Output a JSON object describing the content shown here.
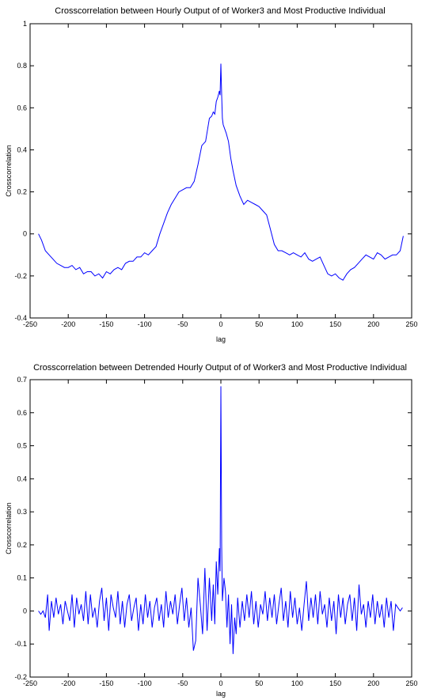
{
  "chart_data": [
    {
      "type": "line",
      "title": "Crosscorrelation between Hourly Output of of Worker3 and Most Productive Individual",
      "xlabel": "lag",
      "ylabel": "Crosscorrelation",
      "xlim": [
        -250,
        250
      ],
      "ylim": [
        -0.4,
        1
      ],
      "xticks": [
        -250,
        -200,
        -150,
        -100,
        -50,
        0,
        50,
        100,
        150,
        200,
        250
      ],
      "yticks": [
        -0.4,
        -0.2,
        0,
        0.2,
        0.4,
        0.6,
        0.8,
        1
      ],
      "xtick_labels": [
        "-250",
        "-200",
        "-150",
        "-100",
        "-50",
        "0",
        "50",
        "100",
        "150",
        "200",
        "250"
      ],
      "ytick_labels": [
        "-0.4",
        "-0.2",
        "0",
        "0.2",
        "0.4",
        "0.6",
        "0.8",
        "1"
      ],
      "grid": false,
      "series_color": "#0000ff",
      "x": [
        -239,
        -235,
        -230,
        -225,
        -220,
        -215,
        -210,
        -205,
        -200,
        -195,
        -190,
        -185,
        -180,
        -175,
        -170,
        -165,
        -160,
        -155,
        -150,
        -145,
        -140,
        -135,
        -130,
        -125,
        -120,
        -115,
        -110,
        -105,
        -100,
        -95,
        -90,
        -85,
        -80,
        -75,
        -70,
        -65,
        -60,
        -55,
        -50,
        -45,
        -40,
        -35,
        -30,
        -25,
        -20,
        -15,
        -12,
        -10,
        -8,
        -6,
        -4,
        -2,
        -1,
        0,
        1,
        2,
        3,
        5,
        7,
        10,
        13,
        16,
        20,
        25,
        30,
        35,
        40,
        45,
        50,
        55,
        60,
        65,
        70,
        75,
        80,
        85,
        90,
        95,
        100,
        105,
        110,
        115,
        120,
        125,
        130,
        135,
        140,
        145,
        150,
        155,
        160,
        165,
        170,
        175,
        180,
        185,
        190,
        195,
        200,
        205,
        210,
        215,
        220,
        225,
        230,
        235,
        239
      ],
      "y": [
        0,
        -0.03,
        -0.08,
        -0.1,
        -0.12,
        -0.14,
        -0.15,
        -0.16,
        -0.16,
        -0.15,
        -0.17,
        -0.16,
        -0.19,
        -0.18,
        -0.18,
        -0.2,
        -0.19,
        -0.21,
        -0.18,
        -0.19,
        -0.17,
        -0.16,
        -0.17,
        -0.14,
        -0.13,
        -0.13,
        -0.11,
        -0.11,
        -0.09,
        -0.1,
        -0.08,
        -0.06,
        0.0,
        0.05,
        0.1,
        0.14,
        0.17,
        0.2,
        0.21,
        0.22,
        0.22,
        0.25,
        0.33,
        0.42,
        0.44,
        0.55,
        0.56,
        0.58,
        0.57,
        0.63,
        0.65,
        0.68,
        0.66,
        0.81,
        0.66,
        0.55,
        0.52,
        0.5,
        0.48,
        0.44,
        0.36,
        0.3,
        0.23,
        0.18,
        0.14,
        0.16,
        0.15,
        0.14,
        0.13,
        0.11,
        0.09,
        0.02,
        -0.05,
        -0.08,
        -0.08,
        -0.09,
        -0.1,
        -0.09,
        -0.1,
        -0.11,
        -0.09,
        -0.12,
        -0.13,
        -0.12,
        -0.11,
        -0.15,
        -0.19,
        -0.2,
        -0.19,
        -0.21,
        -0.22,
        -0.19,
        -0.17,
        -0.16,
        -0.14,
        -0.12,
        -0.1,
        -0.11,
        -0.12,
        -0.09,
        -0.1,
        -0.12,
        -0.11,
        -0.1,
        -0.1,
        -0.08,
        -0.01
      ]
    },
    {
      "type": "line",
      "title": "Crosscorrelation between Detrended Hourly Output of of Worker3 and Most Productive Individual",
      "xlabel": "lag",
      "ylabel": "Crosscorrelation",
      "xlim": [
        -250,
        250
      ],
      "ylim": [
        -0.2,
        0.7
      ],
      "xticks": [
        -250,
        -200,
        -150,
        -100,
        -50,
        0,
        50,
        100,
        150,
        200,
        250
      ],
      "yticks": [
        -0.2,
        -0.1,
        0,
        0.1,
        0.2,
        0.3,
        0.4,
        0.5,
        0.6,
        0.7
      ],
      "xtick_labels": [
        "-250",
        "-200",
        "-150",
        "-100",
        "-50",
        "0",
        "50",
        "100",
        "150",
        "200",
        "250"
      ],
      "ytick_labels": [
        "-0.2",
        "-0.1",
        "0",
        "0.1",
        "0.2",
        "0.3",
        "0.4",
        "0.5",
        "0.6",
        "0.7"
      ],
      "grid": false,
      "series_color": "#0000ff",
      "x": [
        -239,
        -236,
        -233,
        -230,
        -227,
        -225,
        -222,
        -219,
        -216,
        -213,
        -210,
        -207,
        -204,
        -201,
        -198,
        -195,
        -192,
        -189,
        -186,
        -183,
        -180,
        -177,
        -174,
        -171,
        -168,
        -165,
        -162,
        -159,
        -156,
        -153,
        -150,
        -147,
        -144,
        -141,
        -138,
        -135,
        -132,
        -129,
        -126,
        -123,
        -120,
        -117,
        -114,
        -111,
        -108,
        -105,
        -102,
        -99,
        -96,
        -93,
        -90,
        -87,
        -84,
        -81,
        -78,
        -75,
        -72,
        -69,
        -66,
        -63,
        -60,
        -57,
        -54,
        -51,
        -48,
        -45,
        -42,
        -39,
        -36,
        -33,
        -30,
        -27,
        -24,
        -21,
        -18,
        -15,
        -12,
        -10,
        -8,
        -6,
        -4,
        -2,
        -1,
        0,
        1,
        2,
        4,
        6,
        8,
        10,
        12,
        14,
        16,
        18,
        20,
        22,
        25,
        28,
        31,
        34,
        37,
        40,
        43,
        46,
        49,
        52,
        55,
        58,
        61,
        64,
        67,
        70,
        73,
        76,
        79,
        82,
        85,
        88,
        91,
        94,
        97,
        100,
        103,
        106,
        109,
        112,
        115,
        118,
        121,
        124,
        127,
        130,
        133,
        136,
        139,
        142,
        145,
        148,
        151,
        154,
        157,
        160,
        163,
        166,
        169,
        172,
        175,
        178,
        181,
        184,
        187,
        190,
        193,
        196,
        199,
        202,
        205,
        208,
        211,
        214,
        217,
        220,
        223,
        226,
        229,
        232,
        235,
        238
      ],
      "y": [
        0,
        -0.01,
        0.0,
        -0.02,
        0.05,
        -0.06,
        0.03,
        -0.02,
        0.04,
        -0.01,
        0.02,
        -0.04,
        0.03,
        0.0,
        -0.03,
        0.05,
        -0.05,
        0.04,
        -0.01,
        0.02,
        -0.03,
        0.06,
        -0.04,
        0.05,
        -0.02,
        0.01,
        -0.05,
        0.03,
        0.07,
        -0.03,
        0.04,
        -0.06,
        0.05,
        0.01,
        -0.02,
        0.06,
        -0.04,
        0.03,
        -0.05,
        0.02,
        0.05,
        -0.03,
        0.01,
        0.04,
        -0.06,
        0.02,
        -0.04,
        0.05,
        -0.02,
        0.03,
        -0.05,
        0.01,
        0.04,
        -0.03,
        0.02,
        -0.05,
        0.06,
        -0.02,
        0.03,
        -0.01,
        0.05,
        -0.04,
        0.02,
        0.07,
        -0.03,
        0.04,
        -0.05,
        0.01,
        -0.12,
        -0.09,
        0.1,
        0.02,
        -0.07,
        0.13,
        -0.06,
        0.1,
        -0.03,
        0.08,
        -0.04,
        0.15,
        0.05,
        0.19,
        0.12,
        0.68,
        0.2,
        0.03,
        0.1,
        0.06,
        -0.05,
        0.05,
        -0.1,
        0.02,
        -0.13,
        -0.02,
        -0.07,
        0.04,
        -0.05,
        0.03,
        -0.03,
        0.05,
        -0.02,
        0.06,
        -0.04,
        0.03,
        -0.05,
        0.02,
        -0.01,
        0.06,
        -0.03,
        0.04,
        -0.02,
        0.05,
        -0.04,
        0.02,
        0.07,
        -0.03,
        0.03,
        -0.05,
        0.06,
        -0.02,
        0.04,
        -0.04,
        0.01,
        -0.06,
        0.02,
        0.09,
        -0.03,
        0.04,
        -0.02,
        0.05,
        -0.04,
        0.06,
        -0.01,
        0.02,
        -0.05,
        0.04,
        -0.03,
        0.03,
        -0.07,
        0.05,
        -0.02,
        0.04,
        -0.04,
        0.02,
        0.05,
        -0.03,
        0.04,
        -0.06,
        0.08,
        -0.01,
        0.02,
        -0.05,
        0.03,
        -0.02,
        0.05,
        -0.04,
        0.03,
        -0.02,
        0.02,
        -0.05,
        0.04,
        -0.02,
        0.03,
        -0.06,
        0.02,
        0.01,
        0.0,
        0.01
      ]
    }
  ]
}
